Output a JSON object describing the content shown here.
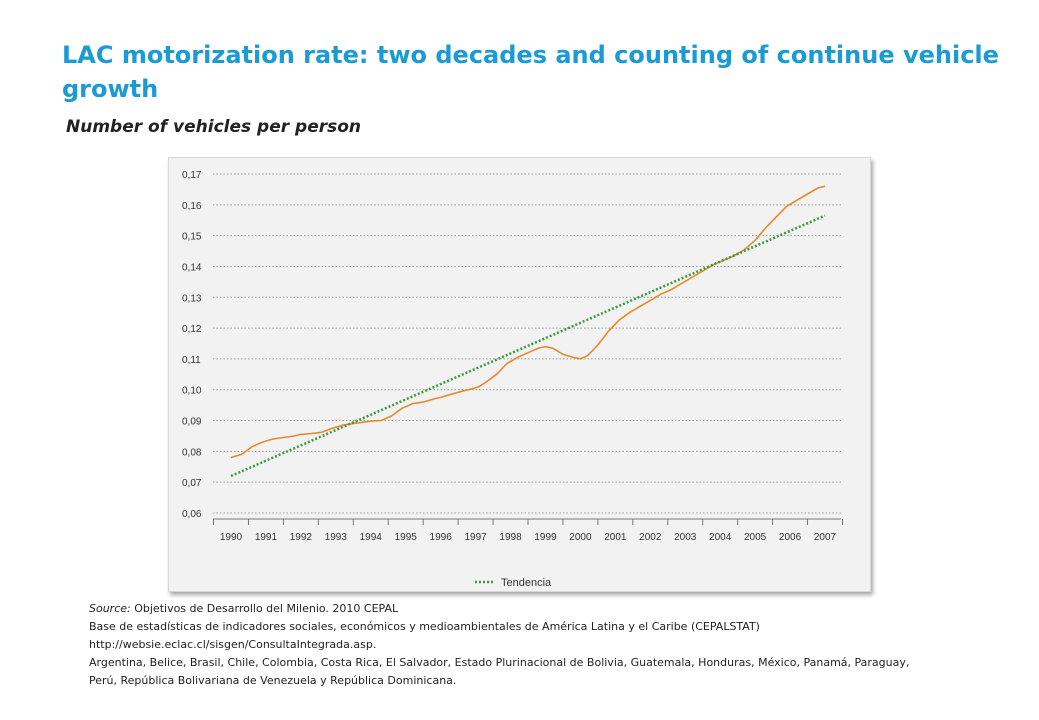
{
  "title": "LAC motorization rate: two decades and counting of continue vehicle growth",
  "subtitle": "Number of vehicles per person",
  "source": {
    "label": "Source:",
    "line1": "Objetivos de Desarrollo del Milenio. 2010  CEPAL",
    "line2": "Base de estadísticas de indicadores sociales, económicos y medioambientales de América Latina y el Caribe (CEPALSTAT)",
    "line3": "http://websie.eclac.cl/sisgen/ConsultaIntegrada.asp.",
    "line4": "Argentina, Belice, Brasil, Chile, Colombia, Costa Rica,  El Salvador, Estado Plurinacional de Bolivia, Guatemala, Honduras, México, Panamá, Paraguay,",
    "line5": "Perú, República Bolivariana de Venezuela y República Dominicana."
  },
  "chart_data": {
    "type": "line",
    "ylim": [
      0.06,
      0.17
    ],
    "yticks": [
      0.06,
      0.07,
      0.08,
      0.09,
      0.1,
      0.11,
      0.12,
      0.13,
      0.14,
      0.15,
      0.16,
      0.17
    ],
    "ytick_labels": [
      "0,06",
      "0,07",
      "0,08",
      "0,09",
      "0,10",
      "0,11",
      "0,12",
      "0,13",
      "0,14",
      "0,15",
      "0,16",
      "0,17"
    ],
    "xlim": [
      1990,
      2007
    ],
    "x_categories": [
      "1990",
      "1991",
      "1992",
      "1993",
      "1994",
      "1995",
      "1996",
      "1997",
      "1998",
      "1999",
      "2000",
      "2001",
      "2002",
      "2003",
      "2004",
      "2005",
      "2006",
      "2007"
    ],
    "grid": "horizontal dotted",
    "legend_position": "bottom-center",
    "series": [
      {
        "color": "#e8892b",
        "style": "solid",
        "points": [
          [
            1990.0,
            0.078
          ],
          [
            1990.3,
            0.079
          ],
          [
            1990.6,
            0.0815
          ],
          [
            1990.9,
            0.083
          ],
          [
            1991.2,
            0.084
          ],
          [
            1991.5,
            0.0845
          ],
          [
            1991.8,
            0.085
          ],
          [
            1992.0,
            0.0855
          ],
          [
            1992.3,
            0.0858
          ],
          [
            1992.6,
            0.0862
          ],
          [
            1992.9,
            0.0875
          ],
          [
            1993.2,
            0.0885
          ],
          [
            1993.5,
            0.089
          ],
          [
            1993.8,
            0.0895
          ],
          [
            1994.0,
            0.0898
          ],
          [
            1994.3,
            0.09
          ],
          [
            1994.6,
            0.0915
          ],
          [
            1994.9,
            0.094
          ],
          [
            1995.2,
            0.0955
          ],
          [
            1995.5,
            0.096
          ],
          [
            1995.8,
            0.097
          ],
          [
            1996.0,
            0.0975
          ],
          [
            1996.3,
            0.0985
          ],
          [
            1996.6,
            0.0995
          ],
          [
            1996.9,
            0.1003
          ],
          [
            1997.1,
            0.101
          ],
          [
            1997.3,
            0.1025
          ],
          [
            1997.6,
            0.105
          ],
          [
            1997.9,
            0.1085
          ],
          [
            1998.2,
            0.1105
          ],
          [
            1998.5,
            0.112
          ],
          [
            1998.8,
            0.1135
          ],
          [
            1999.0,
            0.114
          ],
          [
            1999.2,
            0.1135
          ],
          [
            1999.5,
            0.1115
          ],
          [
            1999.8,
            0.1105
          ],
          [
            2000.0,
            0.11
          ],
          [
            2000.2,
            0.111
          ],
          [
            2000.5,
            0.1145
          ],
          [
            2000.8,
            0.119
          ],
          [
            2001.1,
            0.1225
          ],
          [
            2001.4,
            0.125
          ],
          [
            2001.7,
            0.127
          ],
          [
            2002.0,
            0.129
          ],
          [
            2002.3,
            0.131
          ],
          [
            2002.6,
            0.1325
          ],
          [
            2002.9,
            0.1345
          ],
          [
            2003.2,
            0.1365
          ],
          [
            2003.5,
            0.1385
          ],
          [
            2003.8,
            0.1405
          ],
          [
            2004.1,
            0.142
          ],
          [
            2004.4,
            0.1435
          ],
          [
            2004.7,
            0.1455
          ],
          [
            2005.0,
            0.1485
          ],
          [
            2005.3,
            0.1525
          ],
          [
            2005.6,
            0.156
          ],
          [
            2005.9,
            0.1595
          ],
          [
            2006.2,
            0.1615
          ],
          [
            2006.5,
            0.1635
          ],
          [
            2006.8,
            0.1655
          ],
          [
            2007.0,
            0.166
          ]
        ]
      },
      {
        "name": "Tendencia",
        "color": "#3a9a3a",
        "style": "dotted",
        "points": [
          [
            1990.0,
            0.072
          ],
          [
            2007.0,
            0.1565
          ]
        ]
      }
    ]
  }
}
